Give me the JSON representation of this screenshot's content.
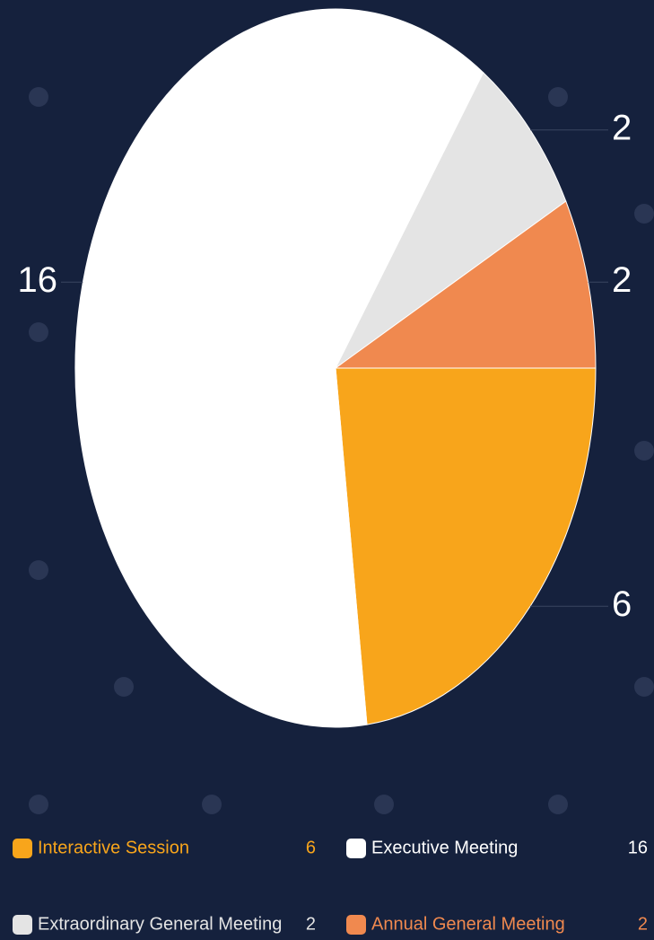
{
  "chart_data": {
    "type": "pie",
    "categories": [
      "Interactive Session",
      "Executive Meeting",
      "Extraordinary General Meeting",
      "Annual General Meeting"
    ],
    "values": [
      6,
      16,
      2,
      2
    ],
    "colors": [
      "#f8a51b",
      "#ffffff",
      "#e4e4e4",
      "#f0894f"
    ],
    "legend": "bottom"
  }
}
